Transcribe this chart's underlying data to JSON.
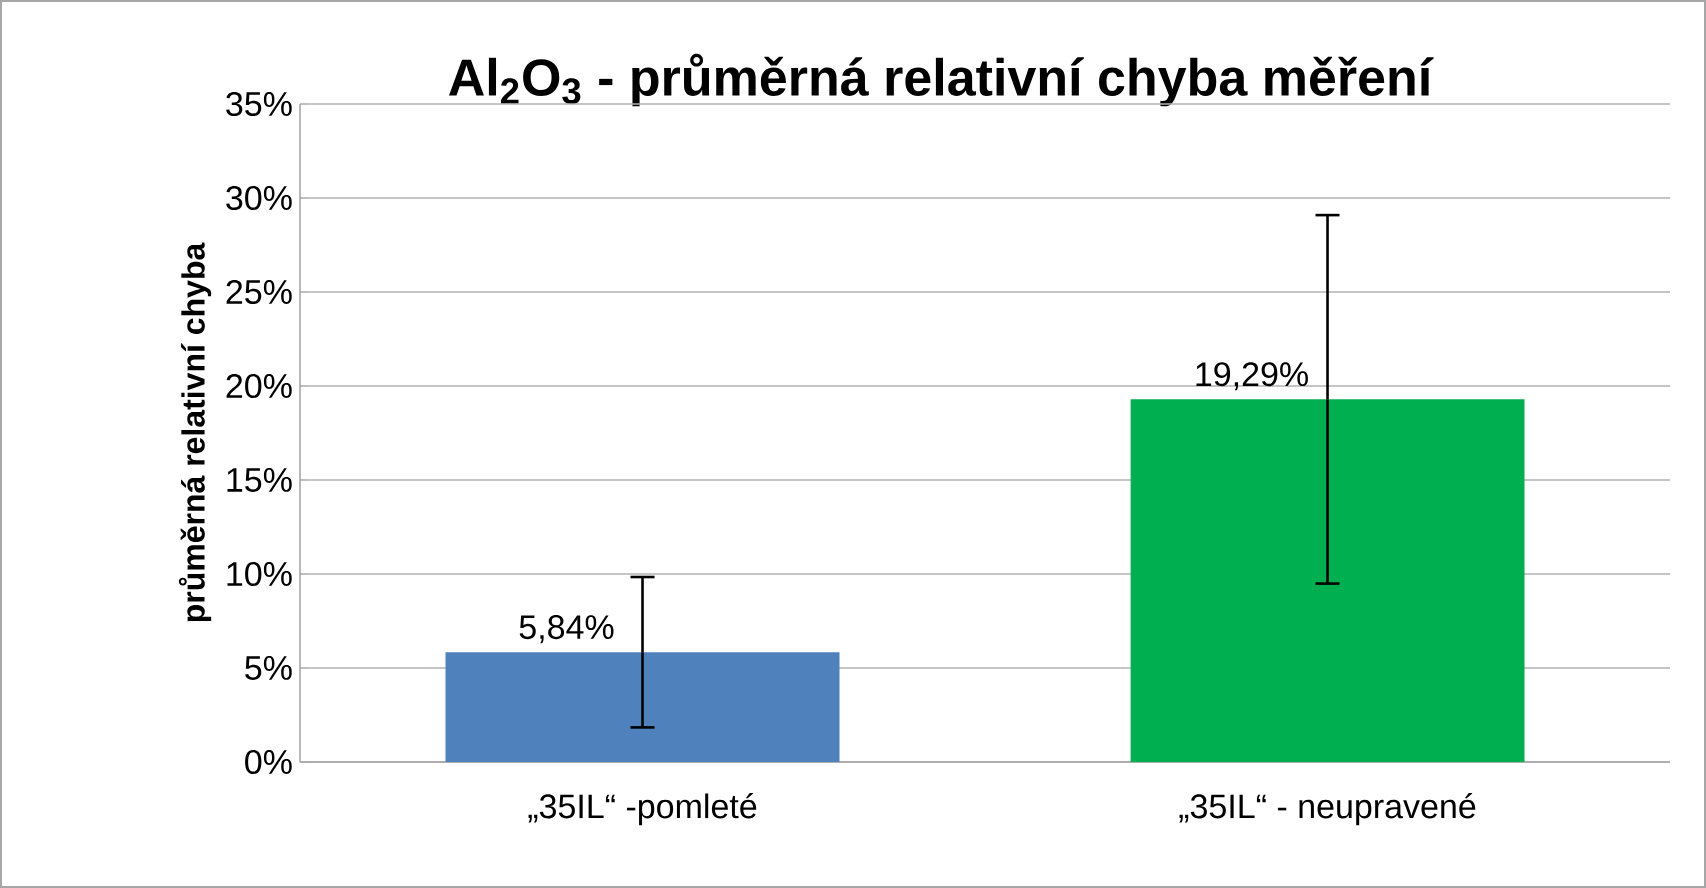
{
  "chart_data": {
    "type": "bar",
    "title": "Al$_{2}$O$_{3}$ - průměrná relativní chyba měření",
    "ylabel": "průměrná relativní chyba",
    "categories": [
      "„35IL“ -pomleté",
      "„35IL“ - neupravené"
    ],
    "values": [
      5.84,
      19.29
    ],
    "colors": [
      "#4f81bd",
      "#00b050"
    ],
    "errors": [
      4.0,
      9.8
    ],
    "value_labels": [
      "5,84%",
      "19,29%"
    ],
    "ylim": [
      0,
      35
    ],
    "yticks": [
      {
        "value": 0,
        "label": "0%"
      },
      {
        "value": 5,
        "label": "5%"
      },
      {
        "value": 10,
        "label": "10%"
      },
      {
        "value": 15,
        "label": "15%"
      },
      {
        "value": 20,
        "label": "20%"
      },
      {
        "value": 25,
        "label": "25%"
      },
      {
        "value": 30,
        "label": "30%"
      },
      {
        "value": 35,
        "label": "35%"
      }
    ],
    "grid": "y"
  }
}
